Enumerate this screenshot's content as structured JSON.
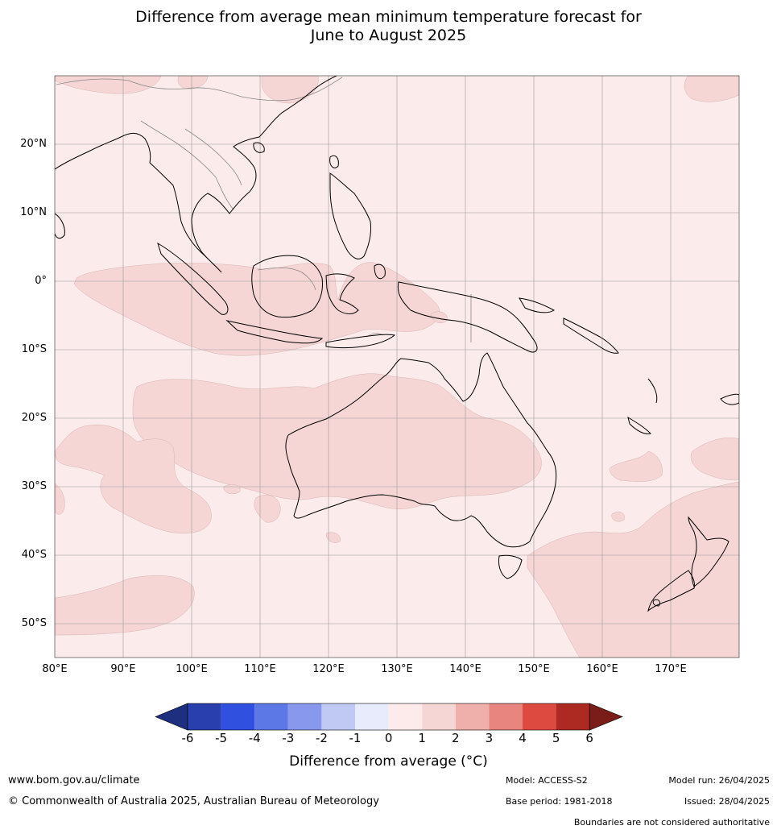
{
  "title": {
    "line1": "Difference from average mean minimum temperature forecast for",
    "line2": "June to August 2025"
  },
  "map": {
    "lat_labels": [
      "20°N",
      "10°N",
      "0°",
      "10°S",
      "20°S",
      "30°S",
      "40°S",
      "50°S"
    ],
    "lon_labels": [
      "80°E",
      "90°E",
      "100°E",
      "110°E",
      "120°E",
      "130°E",
      "140°E",
      "150°E",
      "160°E",
      "170°E"
    ],
    "background_color": "#fbebea",
    "anomaly_1_2_color": "#f5d6d4",
    "coast_color": "#000000",
    "border_color": "#888888",
    "grid_color": "#9a9a9a"
  },
  "colorbar": {
    "ticks": [
      "-6",
      "-5",
      "-4",
      "-3",
      "-2",
      "-1",
      "0",
      "1",
      "2",
      "3",
      "4",
      "5",
      "6"
    ],
    "colors": [
      "#1f2f80",
      "#2a3fae",
      "#3050e0",
      "#5c78e6",
      "#8898ec",
      "#c0c8f4",
      "#e8ebfb",
      "#fcebea",
      "#f5d6d4",
      "#efb0ab",
      "#e8857e",
      "#dc4a40",
      "#ad2a22",
      "#7a1c18"
    ],
    "label": "Difference from average (°C)"
  },
  "footer": {
    "url": "www.bom.gov.au/climate",
    "copyright": "© Commonwealth of Australia 2025, Australian Bureau of Meteorology",
    "model": "Model: ACCESS-S2",
    "base_period": "Base period: 1981-2018",
    "model_run": "Model run: 26/04/2025",
    "issued": "Issued: 28/04/2025",
    "disclaimer": "Boundaries are not considered authoritative"
  }
}
